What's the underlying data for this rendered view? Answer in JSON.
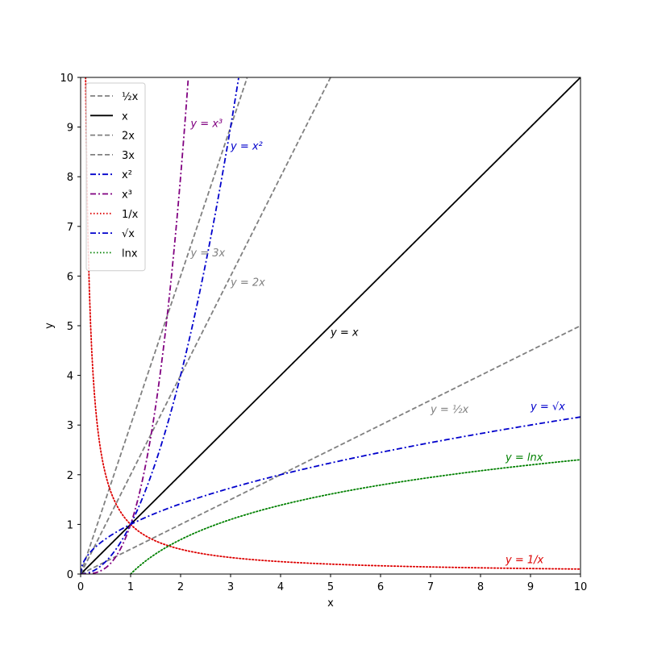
{
  "chart_data": {
    "type": "line",
    "title": "",
    "xlabel": "x",
    "ylabel": "y",
    "xlim": [
      0,
      10
    ],
    "ylim": [
      0,
      10
    ],
    "xticks": [
      "0",
      "1",
      "2",
      "3",
      "4",
      "5",
      "6",
      "7",
      "8",
      "9",
      "10"
    ],
    "yticks": [
      "0",
      "1",
      "2",
      "3",
      "4",
      "5",
      "6",
      "7",
      "8",
      "9",
      "10"
    ],
    "grid": false,
    "legend_position": "top-left",
    "series": [
      {
        "name": "½x",
        "function": "0.5*x",
        "color": "#808080",
        "style": "dashed",
        "x": [
          0,
          2,
          4,
          6,
          8,
          10
        ],
        "y": [
          0,
          1,
          2,
          3,
          4,
          5
        ]
      },
      {
        "name": "x",
        "function": "x",
        "color": "#000000",
        "style": "solid",
        "x": [
          0,
          5,
          10
        ],
        "y": [
          0,
          5,
          10
        ]
      },
      {
        "name": "2x",
        "function": "2*x",
        "color": "#808080",
        "style": "dashed",
        "x": [
          0,
          2.5,
          5
        ],
        "y": [
          0,
          5,
          10
        ]
      },
      {
        "name": "3x",
        "function": "3*x",
        "color": "#808080",
        "style": "dashed",
        "x": [
          0,
          1.67,
          3.33
        ],
        "y": [
          0,
          5,
          10
        ]
      },
      {
        "name": "x²",
        "function": "x^2",
        "color": "#0000cc",
        "style": "dashdot",
        "x": [
          0,
          1,
          2,
          3,
          3.16
        ],
        "y": [
          0,
          1,
          4,
          9,
          10
        ]
      },
      {
        "name": "x³",
        "function": "x^3",
        "color": "#800080",
        "style": "dashdot",
        "x": [
          0,
          1,
          1.5,
          2,
          2.15
        ],
        "y": [
          0,
          1,
          3.375,
          8,
          10
        ]
      },
      {
        "name": "1/x",
        "function": "1/x",
        "color": "#dd0000",
        "style": "dotted",
        "x": [
          0.1,
          0.5,
          1,
          2,
          5,
          10
        ],
        "y": [
          10,
          2,
          1,
          0.5,
          0.2,
          0.1
        ]
      },
      {
        "name": "√x",
        "function": "sqrt(x)",
        "color": "#0000cc",
        "style": "dashdot",
        "x": [
          0,
          1,
          4,
          9,
          10
        ],
        "y": [
          0,
          1,
          2,
          3,
          3.16
        ]
      },
      {
        "name": "lnx",
        "function": "ln(x)",
        "color": "#008000",
        "style": "dotted",
        "x": [
          1,
          2,
          5,
          10
        ],
        "y": [
          0,
          0.69,
          1.61,
          2.3
        ]
      }
    ],
    "annotations": [
      {
        "text": "y = x³",
        "x": 2.2,
        "y": 9.0,
        "color": "#800080"
      },
      {
        "text": "y = x²",
        "x": 3.0,
        "y": 8.55,
        "color": "#0000cc"
      },
      {
        "text": "y = 3x",
        "x": 2.2,
        "y": 6.4,
        "color": "#808080"
      },
      {
        "text": "y = 2x",
        "x": 3.0,
        "y": 5.8,
        "color": "#808080"
      },
      {
        "text": "y = x",
        "x": 5.0,
        "y": 4.8,
        "color": "#000000"
      },
      {
        "text": "y = ½x",
        "x": 7.0,
        "y": 3.25,
        "color": "#808080"
      },
      {
        "text": "y = √x",
        "x": 9.0,
        "y": 3.3,
        "color": "#0000cc"
      },
      {
        "text": "y = lnx",
        "x": 8.5,
        "y": 2.28,
        "color": "#008000"
      },
      {
        "text": "y = 1/x",
        "x": 8.5,
        "y": 0.22,
        "color": "#dd0000"
      }
    ]
  }
}
